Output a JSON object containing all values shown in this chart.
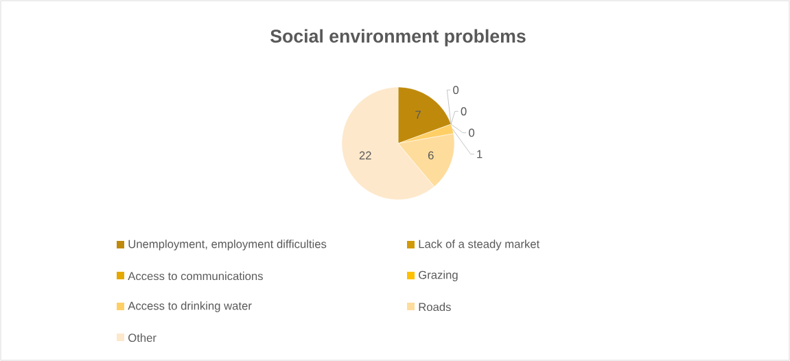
{
  "chart_data": {
    "type": "pie",
    "title": "Social environment problems",
    "categories": [
      "Unemployment, employment difficulties",
      "Lack of a steady market",
      "Access to communications",
      "Grazing",
      "Access to drinking water",
      "Roads",
      "Other"
    ],
    "values": [
      7,
      0,
      0,
      0,
      1,
      6,
      22
    ],
    "colors": [
      "#bf8a0c",
      "#d19a0a",
      "#e5a800",
      "#ffc000",
      "#ffcf66",
      "#fedc9c",
      "#fde8cb"
    ],
    "value_labels": [
      "7",
      "0",
      "0",
      "0",
      "1",
      "6",
      "22"
    ],
    "legend": "bottom"
  }
}
